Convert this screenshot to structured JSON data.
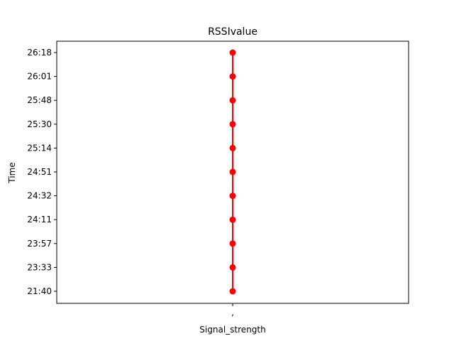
{
  "chart_data": {
    "type": "line",
    "title": "RSSIvalue",
    "xlabel": "Signal_strength",
    "ylabel": "Time",
    "x_categories": [
      ","
    ],
    "y_categories": [
      "21:40",
      "23:33",
      "23:57",
      "24:11",
      "24:32",
      "24:51",
      "25:14",
      "25:30",
      "25:48",
      "26:01",
      "26:18"
    ],
    "series": [
      {
        "color": "#ff0000",
        "marker": "circle",
        "points": [
          {
            "x": ",",
            "y": "21:40"
          },
          {
            "x": ",",
            "y": "23:33"
          },
          {
            "x": ",",
            "y": "23:57"
          },
          {
            "x": ",",
            "y": "24:11"
          },
          {
            "x": ",",
            "y": "24:32"
          },
          {
            "x": ",",
            "y": "24:51"
          },
          {
            "x": ",",
            "y": "25:14"
          },
          {
            "x": ",",
            "y": "25:30"
          },
          {
            "x": ",",
            "y": "25:48"
          },
          {
            "x": ",",
            "y": "26:01"
          },
          {
            "x": ",",
            "y": "26:18"
          }
        ]
      }
    ],
    "grid": false,
    "legend": "none"
  }
}
